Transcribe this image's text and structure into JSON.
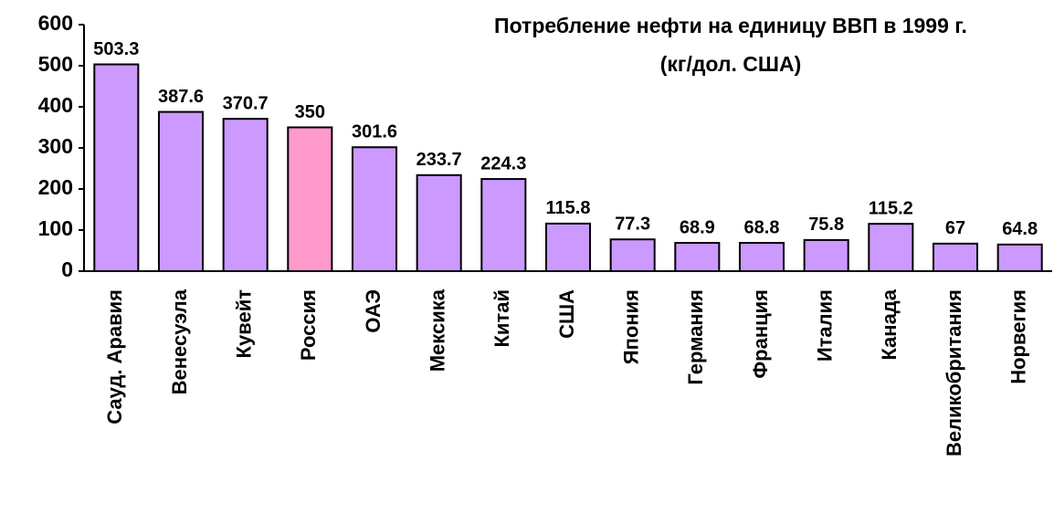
{
  "chart_data": {
    "type": "bar",
    "title": [
      "Потребление нефти на единицу ВВП в 1999 г.",
      "(кг/дол. США)"
    ],
    "categories": [
      "Сауд. Аравия",
      "Венесуэла",
      "Кувейт",
      "Россия",
      "ОАЭ",
      "Мексика",
      "Китай",
      "США",
      "Япония",
      "Германия",
      "Франция",
      "Италия",
      "Канада",
      "Великобритания",
      "Норвегия"
    ],
    "values": [
      503.3,
      387.6,
      370.7,
      350,
      301.6,
      233.7,
      224.3,
      115.8,
      77.3,
      68.9,
      68.8,
      75.8,
      115.2,
      67,
      64.8
    ],
    "colors": [
      "#cc99ff",
      "#cc99ff",
      "#cc99ff",
      "#ff99cc",
      "#cc99ff",
      "#cc99ff",
      "#cc99ff",
      "#cc99ff",
      "#cc99ff",
      "#cc99ff",
      "#cc99ff",
      "#cc99ff",
      "#cc99ff",
      "#cc99ff",
      "#cc99ff"
    ],
    "ylim": [
      0,
      600
    ],
    "yticks": [
      0,
      100,
      200,
      300,
      400,
      500,
      600
    ],
    "grid": false
  }
}
